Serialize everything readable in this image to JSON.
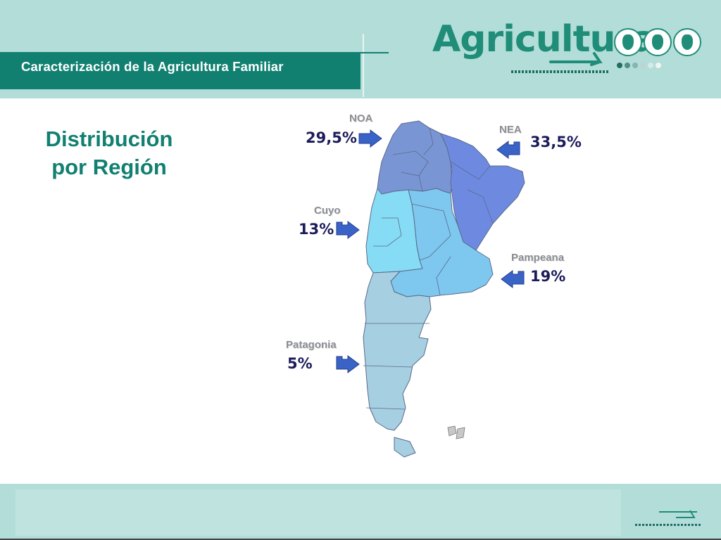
{
  "header": {
    "subtitle": "Caracterización de la Agricultura Familiar",
    "logo_text": "Agricultura",
    "logo_icons": [
      "wheat-icon",
      "cow-icon",
      "fish-icon"
    ]
  },
  "main": {
    "title_line1": "Distribución",
    "title_line2": "por Región"
  },
  "regions": [
    {
      "name": "NOA",
      "percent": "29,5%"
    },
    {
      "name": "NEA",
      "percent": "33,5%"
    },
    {
      "name": "Cuyo",
      "percent": "13%"
    },
    {
      "name": "Pampeana",
      "percent": "19%"
    },
    {
      "name": "Patagonia",
      "percent": "5%"
    }
  ],
  "colors": {
    "band": "#b3ddd8",
    "title_bar": "#118071",
    "title_text": "#118071",
    "arrow": "#3a63c8",
    "noa": "#7a95d4",
    "nea": "#6e8ae0",
    "cuyo": "#86dcf4",
    "pampeana": "#7ec8f0",
    "patagonia": "#a6cfe2"
  }
}
